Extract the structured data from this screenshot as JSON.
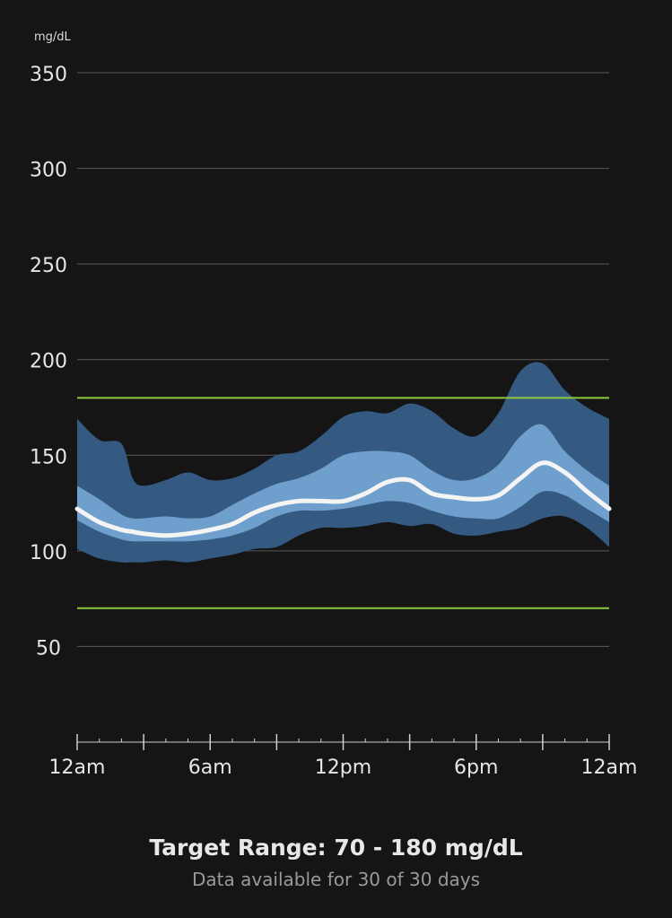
{
  "unit_label": "mg/dL",
  "footer": {
    "title": "Target Range: 70 - 180 mg/dL",
    "subtitle": "Data available for 30 of 30 days"
  },
  "colors": {
    "background": "#151515",
    "gridline": "#5a5a5a",
    "target_line": "#8dc63f",
    "outer_band": "#355a82",
    "inner_band": "#6f9fcc",
    "median": "#f4f4f4",
    "text": "#e6e6e6"
  },
  "chart_data": {
    "type": "area",
    "title": "",
    "ylabel": "mg/dL",
    "xlabel": "",
    "ylim": [
      0,
      350
    ],
    "xlim": [
      0,
      24
    ],
    "y_ticks": [
      50,
      100,
      150,
      200,
      250,
      300,
      350
    ],
    "x_ticks": [
      {
        "value": 0,
        "label": "12am"
      },
      {
        "value": 6,
        "label": "6am"
      },
      {
        "value": 12,
        "label": "12pm"
      },
      {
        "value": 18,
        "label": "6pm"
      },
      {
        "value": 24,
        "label": "12am"
      }
    ],
    "target_range": [
      70,
      180
    ],
    "grid": true,
    "x": [
      0,
      1,
      2,
      2.5,
      3,
      4,
      5,
      6,
      7,
      8,
      9,
      10,
      11,
      12,
      13,
      14,
      15,
      16,
      17,
      18,
      19,
      20,
      21,
      22,
      23,
      24
    ],
    "series": [
      {
        "values": [
          101,
          96,
          94,
          94,
          94,
          95,
          94,
          96,
          98,
          101,
          102,
          108,
          112,
          112,
          113,
          115,
          113,
          114,
          109,
          108,
          110,
          112,
          117,
          118,
          112,
          102
        ]
      },
      {
        "values": [
          116,
          110,
          106,
          105,
          105,
          105,
          105,
          106,
          108,
          112,
          118,
          121,
          121,
          122,
          124,
          126,
          125,
          121,
          118,
          117,
          117,
          123,
          131,
          129,
          122,
          115
        ]
      },
      {
        "values": [
          122,
          115,
          111,
          110,
          109,
          108,
          109,
          111,
          114,
          120,
          124,
          126,
          126,
          126,
          130,
          136,
          137,
          130,
          128,
          127,
          129,
          138,
          146,
          141,
          131,
          122
        ]
      },
      {
        "values": [
          134,
          127,
          119,
          117,
          117,
          118,
          117,
          118,
          124,
          130,
          135,
          138,
          143,
          150,
          152,
          152,
          150,
          142,
          137,
          138,
          145,
          160,
          166,
          152,
          142,
          134
        ]
      },
      {
        "values": [
          169,
          158,
          156,
          138,
          134,
          137,
          141,
          137,
          138,
          143,
          150,
          152,
          160,
          170,
          173,
          172,
          177,
          173,
          164,
          160,
          172,
          194,
          198,
          184,
          175,
          169
        ]
      }
    ]
  }
}
